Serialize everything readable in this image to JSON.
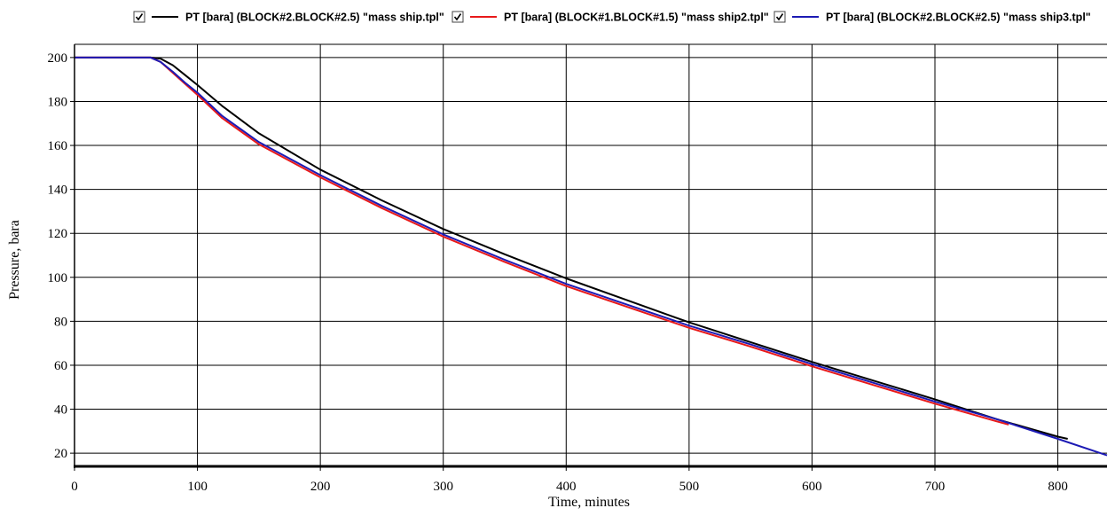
{
  "chart_data": {
    "type": "line",
    "xlabel": "Time, minutes",
    "ylabel": "Pressure, bara",
    "xlim": [
      0,
      840
    ],
    "ylim": [
      14,
      206
    ],
    "xticks": [
      0,
      100,
      200,
      300,
      400,
      500,
      600,
      700,
      800
    ],
    "yticks": [
      20,
      40,
      60,
      80,
      100,
      120,
      140,
      160,
      180,
      200
    ],
    "grid": true,
    "legend_position": "top",
    "legend_checked": [
      true,
      true,
      true
    ],
    "series": [
      {
        "name": "PT [bara] (BLOCK#2.BLOCK#2.5) \"mass ship.tpl\"",
        "color": "#000000",
        "x": [
          0,
          62,
          70,
          80,
          90,
          100,
          120,
          150,
          200,
          250,
          300,
          350,
          400,
          450,
          500,
          550,
          600,
          650,
          700,
          750,
          800,
          808
        ],
        "y": [
          200,
          200,
          199.5,
          196.5,
          192,
          187.5,
          178,
          165.5,
          149,
          135,
          122,
          110.5,
          99.5,
          89.5,
          79.5,
          70.5,
          61.5,
          53,
          44.5,
          35.5,
          27.5,
          26.5
        ]
      },
      {
        "name": "PT [bara] (BLOCK#1.BLOCK#1.5) \"mass ship2.tpl\"",
        "color": "#e8191a",
        "x": [
          0,
          62,
          70,
          80,
          90,
          100,
          120,
          150,
          200,
          250,
          300,
          350,
          400,
          450,
          500,
          550,
          600,
          650,
          700,
          750,
          760
        ],
        "y": [
          200,
          200,
          198,
          193,
          188,
          183,
          172.5,
          160.5,
          145.5,
          131.5,
          118.5,
          107,
          96,
          86.5,
          77,
          68.5,
          59.5,
          51,
          42.5,
          34.5,
          33
        ]
      },
      {
        "name": "PT [bara] (BLOCK#2.BLOCK#2.5) \"mass ship3.tpl\"",
        "color": "#1c1ab4",
        "x": [
          0,
          62,
          70,
          80,
          90,
          100,
          120,
          150,
          200,
          250,
          300,
          350,
          400,
          450,
          500,
          550,
          600,
          650,
          700,
          750,
          800,
          840
        ],
        "y": [
          200,
          200,
          198,
          193.5,
          188.5,
          184,
          173.5,
          161.5,
          146.5,
          132.5,
          119.5,
          108,
          97,
          87.5,
          78,
          69.5,
          60.5,
          52,
          43.5,
          35.5,
          26.5,
          19
        ]
      }
    ]
  }
}
